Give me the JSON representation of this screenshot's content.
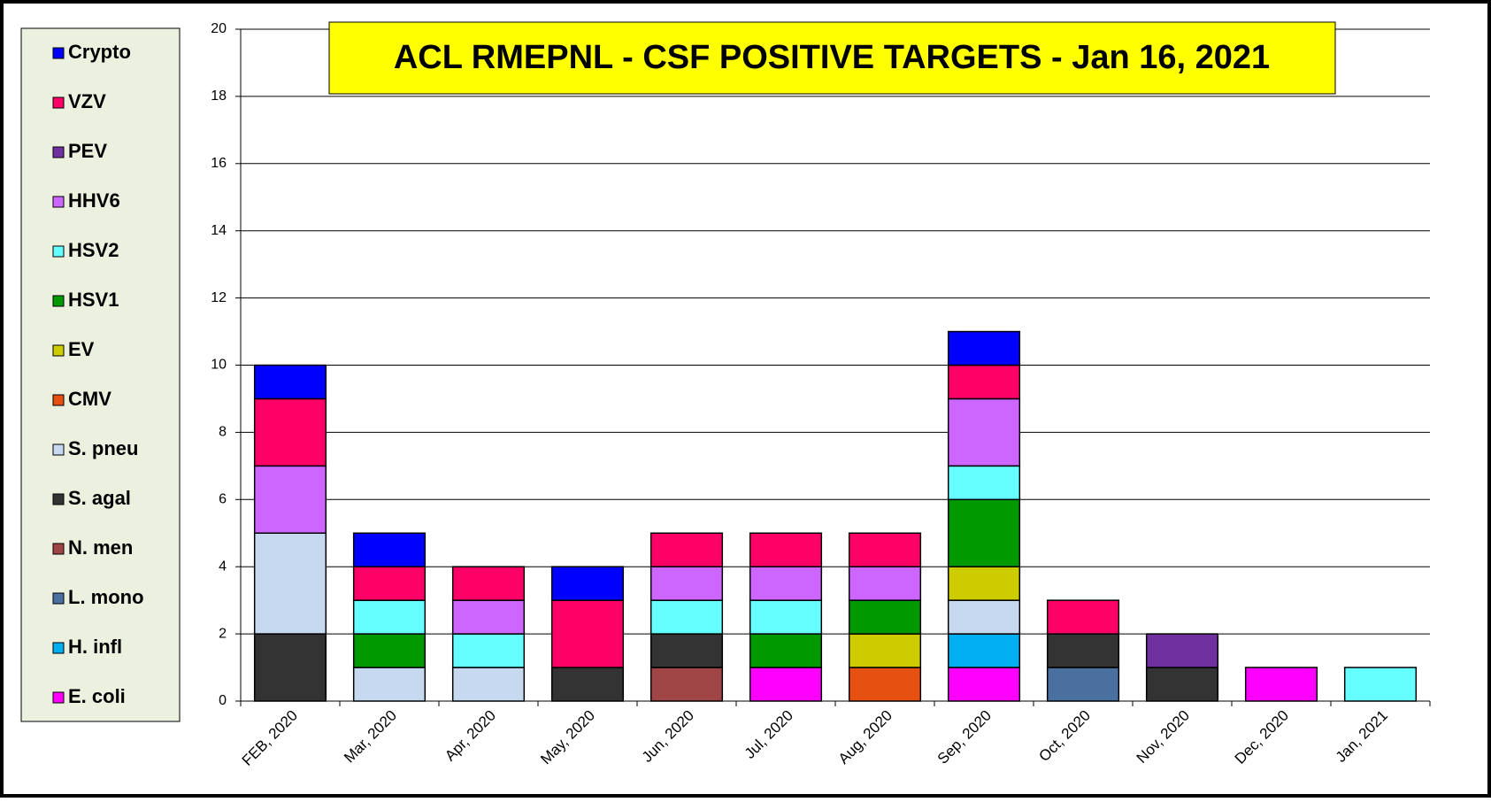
{
  "chart_data": {
    "type": "stacked_bar",
    "title": "ACL RMEPNL - CSF POSITIVE TARGETS - Jan 16, 2021",
    "categories": [
      "FEB, 2020",
      "Mar, 2020",
      "Apr, 2020",
      "May, 2020",
      "Jun, 2020",
      "Jul, 2020",
      "Aug, 2020",
      "Sep, 2020",
      "Oct, 2020",
      "Nov, 2020",
      "Dec, 2020",
      "Jan, 2021"
    ],
    "series": [
      {
        "name": "E. coli",
        "color": "#ff00ff",
        "values": [
          0,
          0,
          0,
          0,
          0,
          1,
          0,
          1,
          0,
          0,
          1,
          0
        ]
      },
      {
        "name": "H. infl",
        "color": "#00b0f0",
        "values": [
          0,
          0,
          0,
          0,
          0,
          0,
          0,
          1,
          0,
          0,
          0,
          0
        ]
      },
      {
        "name": "L. mono",
        "color": "#4a70a0",
        "values": [
          0,
          0,
          0,
          0,
          0,
          0,
          0,
          0,
          1,
          0,
          0,
          0
        ]
      },
      {
        "name": "N. men",
        "color": "#a04545",
        "values": [
          0,
          0,
          0,
          0,
          1,
          0,
          0,
          0,
          0,
          0,
          0,
          0
        ]
      },
      {
        "name": "S. agal",
        "color": "#333333",
        "values": [
          2,
          0,
          0,
          1,
          1,
          0,
          0,
          0,
          1,
          1,
          0,
          0
        ]
      },
      {
        "name": "S. pneu",
        "color": "#c6d9f1",
        "values": [
          3,
          1,
          1,
          0,
          0,
          0,
          0,
          1,
          0,
          0,
          0,
          0
        ]
      },
      {
        "name": "CMV",
        "color": "#e65010",
        "values": [
          0,
          0,
          0,
          0,
          0,
          0,
          1,
          0,
          0,
          0,
          0,
          0
        ]
      },
      {
        "name": "EV",
        "color": "#cccc00",
        "values": [
          0,
          0,
          0,
          0,
          0,
          0,
          1,
          1,
          0,
          0,
          0,
          0
        ]
      },
      {
        "name": "HSV1",
        "color": "#009900",
        "values": [
          0,
          1,
          0,
          0,
          0,
          1,
          1,
          2,
          0,
          0,
          0,
          0
        ]
      },
      {
        "name": "HSV2",
        "color": "#66ffff",
        "values": [
          0,
          1,
          1,
          0,
          1,
          1,
          0,
          1,
          0,
          0,
          0,
          1
        ]
      },
      {
        "name": "HHV6",
        "color": "#cc66ff",
        "values": [
          2,
          0,
          1,
          0,
          1,
          1,
          1,
          2,
          0,
          0,
          0,
          0
        ]
      },
      {
        "name": "PEV",
        "color": "#7030a0",
        "values": [
          0,
          0,
          0,
          0,
          0,
          0,
          0,
          0,
          0,
          1,
          0,
          0
        ]
      },
      {
        "name": "VZV",
        "color": "#ff0066",
        "values": [
          2,
          1,
          1,
          2,
          1,
          1,
          1,
          1,
          1,
          0,
          0,
          0
        ]
      },
      {
        "name": "Crypto",
        "color": "#0000ff",
        "values": [
          1,
          1,
          0,
          1,
          0,
          0,
          0,
          1,
          0,
          0,
          0,
          0
        ]
      }
    ],
    "ylim": [
      0,
      20
    ],
    "yticks": [
      0,
      2,
      4,
      6,
      8,
      10,
      12,
      14,
      16,
      18,
      20
    ],
    "grid": true
  }
}
